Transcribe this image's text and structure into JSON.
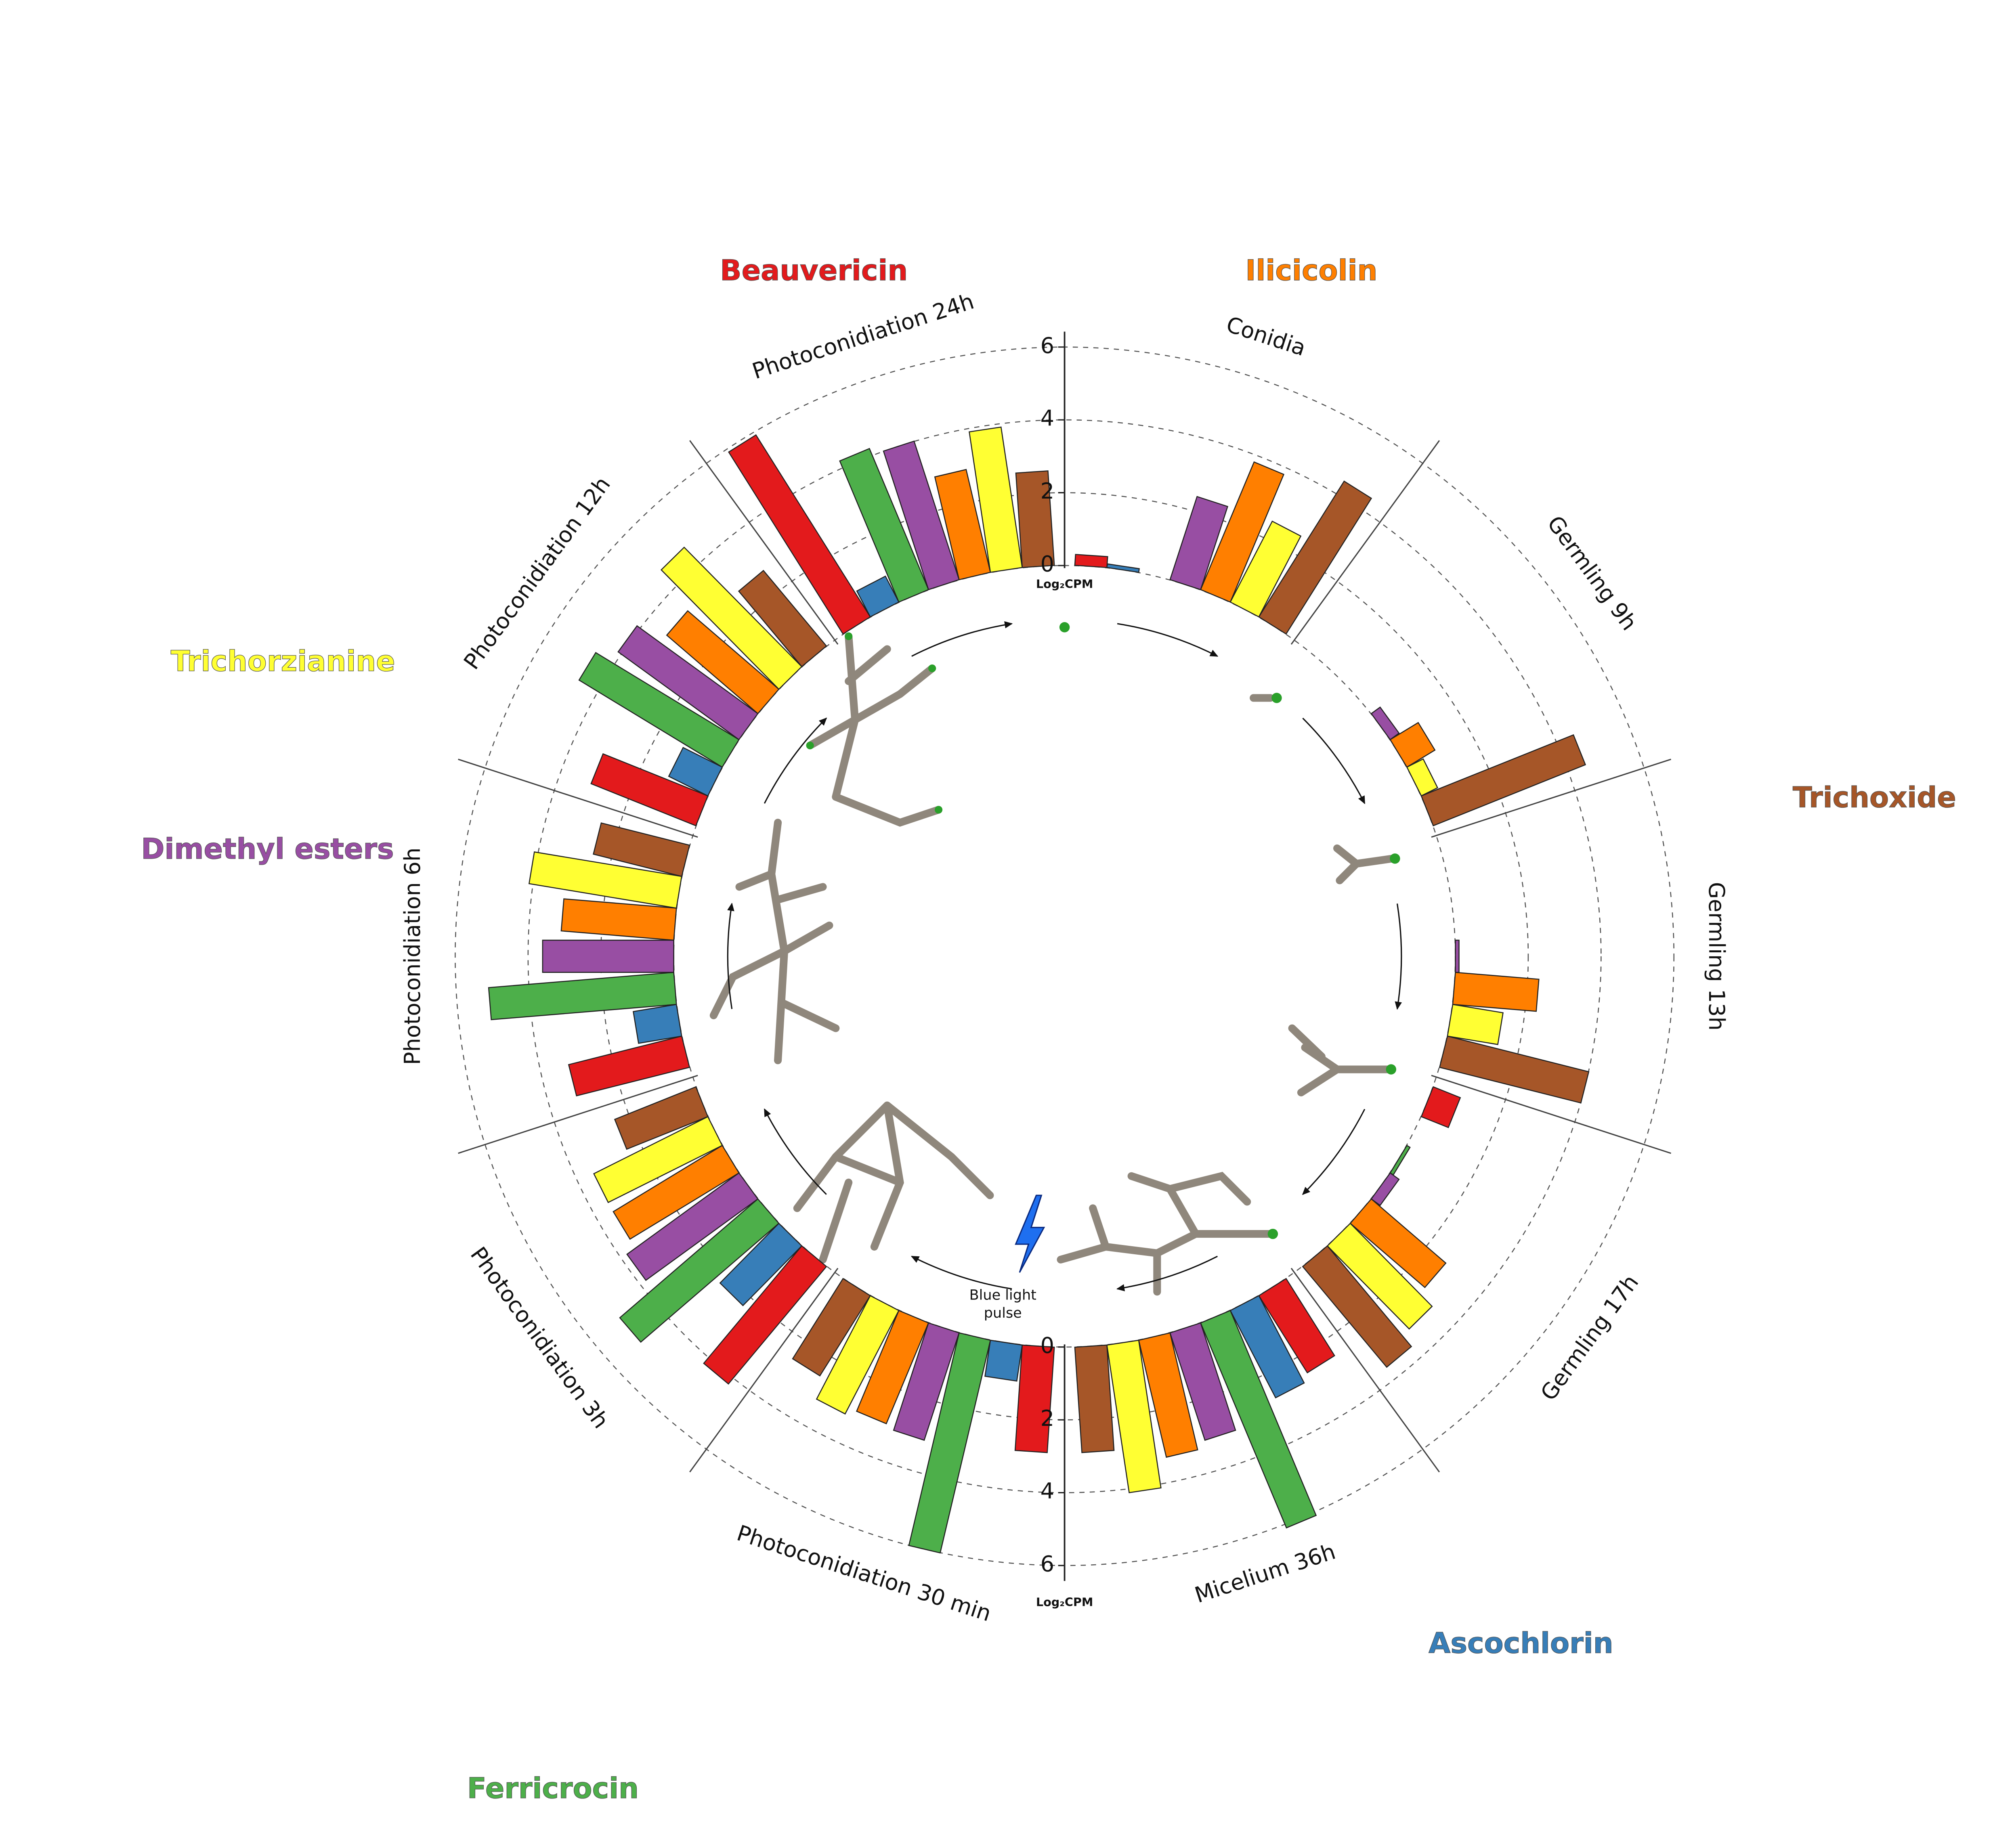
{
  "chart_data": {
    "type": "radial_bar",
    "categories": [
      "Conidia",
      "Germling 9h",
      "Germling 13h",
      "Germling 17h",
      "Micelium 36h",
      "Photoconidiation 30 min",
      "Photoconidiation 3h",
      "Photoconidiation 6h",
      "Photoconidiation 12h",
      "Photoconidiation 24h"
    ],
    "series": [
      {
        "name": "Beauvericin",
        "color": "#e31a1c",
        "values": [
          0.3,
          0,
          0,
          0.8,
          2.5,
          2.9,
          4.2,
          3.2,
          3.1,
          5.9
        ]
      },
      {
        "name": "Ascochlorin",
        "color": "#377eb8",
        "values": [
          0.1,
          0,
          0,
          0,
          2.7,
          1.0,
          2.3,
          1.2,
          1.2,
          0.8
        ]
      },
      {
        "name": "Ferricrocin",
        "color": "#4daf4a",
        "values": [
          0,
          0,
          0,
          0.1,
          6.1,
          6.0,
          5.0,
          5.1,
          4.6,
          4.2
        ]
      },
      {
        "name": "Dimethyl esters",
        "color": "#984ea3",
        "values": [
          2.4,
          0.3,
          0.1,
          0.3,
          3.1,
          3.1,
          3.8,
          3.6,
          4.1,
          4.0
        ]
      },
      {
        "name": "Ilicicolin",
        "color": "#ff7f00",
        "values": [
          3.8,
          0.9,
          2.3,
          2.7,
          3.3,
          3.0,
          3.5,
          3.1,
          3.3,
          2.9
        ]
      },
      {
        "name": "Trichorzianine",
        "color": "#ffff33",
        "values": [
          2.5,
          0.5,
          1.4,
          3.2,
          4.1,
          3.2,
          3.5,
          4.1,
          4.6,
          3.9
        ]
      },
      {
        "name": "Trichoxide",
        "color": "#a65628",
        "values": [
          4.4,
          4.5,
          4.0,
          3.6,
          2.9,
          2.6,
          2.4,
          2.5,
          2.7,
          2.6
        ]
      }
    ],
    "ylim": [
      0,
      6
    ],
    "yticks": [
      0,
      2,
      4,
      6
    ],
    "axis_label": "Log₂CPM",
    "annotation": [
      "Blue light",
      "pulse"
    ],
    "grid": true
  }
}
